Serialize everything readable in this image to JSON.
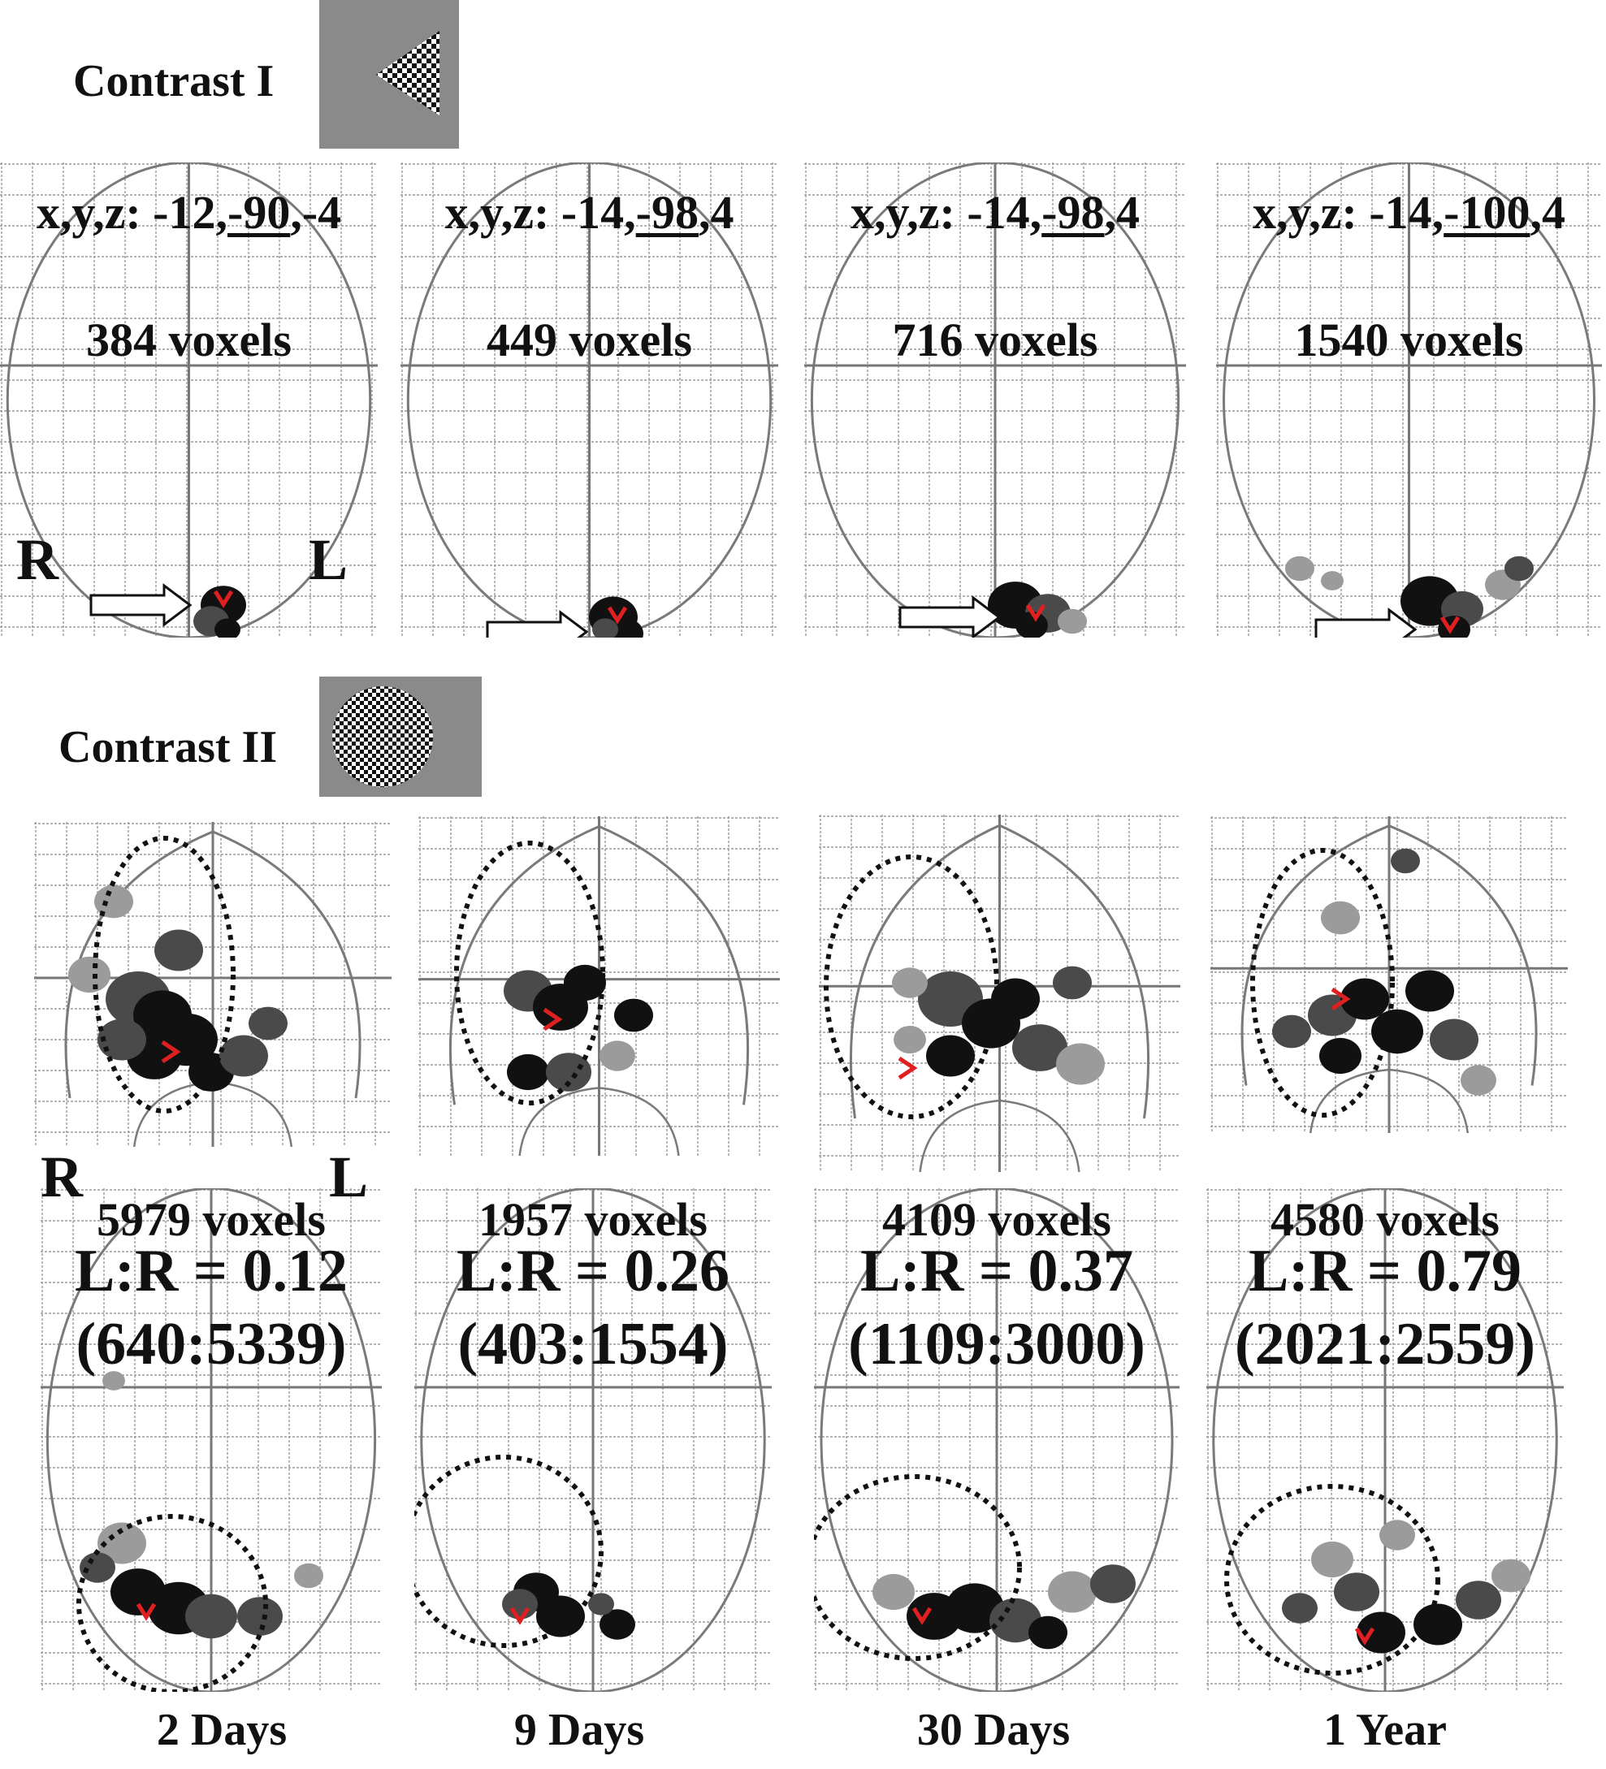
{
  "contrast1": {
    "title": "Contrast I",
    "stimulus": "checkerboard-triangle"
  },
  "contrast2": {
    "title": "Contrast II",
    "stimulus": "checkerboard-circle"
  },
  "orientation": {
    "right": "R",
    "left": "L"
  },
  "row1": [
    {
      "coord_prefix": "x,y,z: -12,",
      "coord_y": "-90",
      "coord_suffix": ",-4",
      "voxels": "384 voxels"
    },
    {
      "coord_prefix": "x,y,z: -14,",
      "coord_y": "-98",
      "coord_suffix": ",4",
      "voxels": "449 voxels"
    },
    {
      "coord_prefix": "x,y,z: -14,",
      "coord_y": "-98",
      "coord_suffix": ",4",
      "voxels": "716 voxels"
    },
    {
      "coord_prefix": "x,y,z: -14,",
      "coord_y": "-100",
      "coord_suffix": ",4",
      "voxels": "1540 voxels"
    }
  ],
  "row3": [
    {
      "voxels": "5979 voxels",
      "lr": "L:R = 0.12",
      "ratio": "(640:5339)"
    },
    {
      "voxels": "1957 voxels",
      "lr": "L:R = 0.26",
      "ratio": "(403:1554)"
    },
    {
      "voxels": "4109 voxels",
      "lr": "L:R = 0.37",
      "ratio": "(1109:3000)"
    },
    {
      "voxels": "4580 voxels",
      "lr": "L:R = 0.79",
      "ratio": "(2021:2559)"
    }
  ],
  "timepoints": [
    "2 Days",
    "9 Days",
    "30 Days",
    "1 Year"
  ],
  "colors": {
    "grid": "#9a9a9a",
    "outline": "#7a7a7a",
    "blob_dark": "#111111",
    "blob_mid": "#4a4a4a",
    "blob_light": "#9b9b9b",
    "marker": "#e02020",
    "stim_bg": "#8a8a8a"
  }
}
